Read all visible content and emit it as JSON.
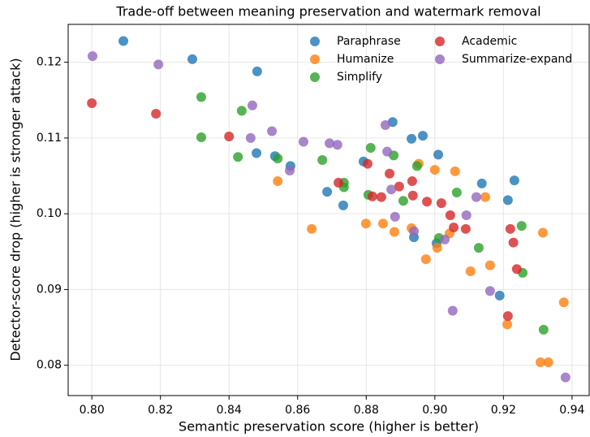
{
  "chart_data": {
    "type": "scatter",
    "title": "Trade-off between meaning preservation and watermark removal",
    "x_label": "Semantic preservation score (higher is better)",
    "y_label": "Detector-score drop (higher is stronger attack)",
    "xlim": [
      0.7931,
      0.945
    ],
    "ylim": [
      0.076,
      0.125
    ],
    "xticks": [
      {
        "value": 0.8,
        "label": "0.80"
      },
      0.82,
      0.84,
      0.86,
      0.88,
      {
        "value": 0.9,
        "label": "0.90"
      },
      0.92,
      0.94
    ],
    "yticks": [
      0.08,
      0.09,
      {
        "value": 0.1,
        "label": "0.10"
      },
      0.11,
      0.12
    ],
    "grid": true,
    "legend": "upper right",
    "legend_columns": 2,
    "series": [
      {
        "name": "Paraphrase",
        "color": "#1f77b4",
        "x": [
          0.8092,
          0.8293,
          0.8482,
          0.848,
          0.8534,
          0.8579,
          0.8686,
          0.8733,
          0.8792,
          0.8877,
          0.8932,
          0.8965,
          0.901,
          0.8939,
          0.9005,
          0.9137,
          0.9232,
          0.9213,
          0.9189
        ],
        "values": [
          0.1228,
          0.1204,
          0.1188,
          0.108,
          0.1076,
          0.1063,
          0.1029,
          0.1011,
          0.1069,
          0.1121,
          0.1099,
          0.1103,
          0.1078,
          0.0969,
          0.0961,
          0.104,
          0.1044,
          0.1018,
          0.0892
        ]
      },
      {
        "name": "Humanize",
        "color": "#ff7f0e",
        "x": [
          0.8542,
          0.8641,
          0.8799,
          0.8849,
          0.8882,
          0.8932,
          0.8953,
          0.9,
          0.8974,
          0.9007,
          0.9043,
          0.9059,
          0.9147,
          0.9104,
          0.9161,
          0.9211,
          0.9315,
          0.9376,
          0.9308,
          0.9331
        ],
        "values": [
          0.1043,
          0.098,
          0.0987,
          0.0987,
          0.0976,
          0.0981,
          0.1066,
          0.1058,
          0.094,
          0.0955,
          0.0974,
          0.1056,
          0.1022,
          0.0924,
          0.0932,
          0.0854,
          0.0975,
          0.0883,
          0.0804,
          0.0804
        ]
      },
      {
        "name": "Simplify",
        "color": "#2ca02c",
        "x": [
          0.8319,
          0.8319,
          0.8437,
          0.8426,
          0.8542,
          0.8672,
          0.8735,
          0.8735,
          0.8806,
          0.8813,
          0.888,
          0.8908,
          0.8948,
          0.9012,
          0.9064,
          0.9128,
          0.9253,
          0.9256,
          0.9317
        ],
        "values": [
          0.1154,
          0.1101,
          0.1136,
          0.1075,
          0.1073,
          0.1071,
          0.1041,
          0.1035,
          0.1025,
          0.1087,
          0.1077,
          0.1017,
          0.1063,
          0.0968,
          0.1028,
          0.0955,
          0.0984,
          0.0922,
          0.0847
        ]
      },
      {
        "name": "Academic",
        "color": "#d62728",
        "x": [
          0.8,
          0.8187,
          0.84,
          0.8719,
          0.8804,
          0.8818,
          0.8844,
          0.8868,
          0.8896,
          0.8934,
          0.8936,
          0.8977,
          0.9019,
          0.9045,
          0.9055,
          0.909,
          0.922,
          0.9229,
          0.9239,
          0.9213
        ],
        "values": [
          0.1146,
          0.1132,
          0.1102,
          0.1041,
          0.1066,
          0.1023,
          0.1022,
          0.1053,
          0.1036,
          0.1043,
          0.1024,
          0.1016,
          0.1014,
          0.0998,
          0.0982,
          0.098,
          0.098,
          0.0962,
          0.0927,
          0.0865
        ]
      },
      {
        "name": "Summarize-expand",
        "color": "#9467bd",
        "x": [
          0.8002,
          0.8194,
          0.8468,
          0.8463,
          0.8525,
          0.8577,
          0.8617,
          0.8693,
          0.8716,
          0.8856,
          0.8861,
          0.8873,
          0.8884,
          0.8939,
          0.9029,
          0.9052,
          0.9092,
          0.9121,
          0.9161,
          0.9381
        ],
        "values": [
          0.1208,
          0.1197,
          0.1143,
          0.11,
          0.1109,
          0.1057,
          0.1095,
          0.1093,
          0.1091,
          0.1117,
          0.1082,
          0.1032,
          0.0996,
          0.0977,
          0.0966,
          0.0872,
          0.0998,
          0.1022,
          0.0898,
          0.0784
        ]
      }
    ]
  }
}
